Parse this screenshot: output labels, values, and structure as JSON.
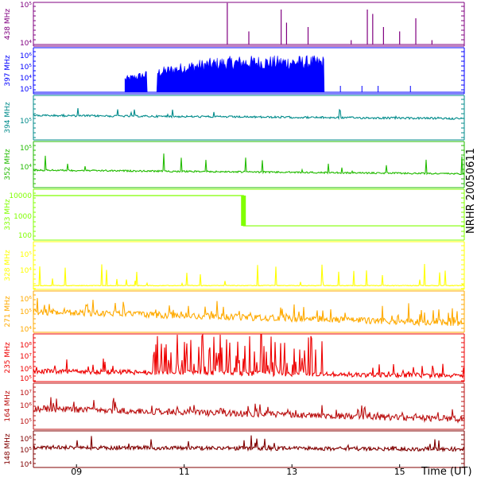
{
  "figure": {
    "side_label": "NRHR 20050611",
    "x_axis_label": "Time (UT)",
    "x_ticks": [
      "09",
      "11",
      "13",
      "15"
    ],
    "x_range_hours": [
      8.2,
      16.2
    ]
  },
  "chart_data": [
    {
      "type": "line",
      "channel": "438 MHz",
      "color": "#800080",
      "y_scale": "log",
      "y_ticks": [
        "10⁵",
        "10⁴"
      ],
      "baseline": "flat near 10^4",
      "spikes": [
        {
          "x": 11.8,
          "y": "10⁵"
        },
        {
          "x": 12.2,
          "y": "10^4.3"
        },
        {
          "x": 12.8,
          "y": "10^4.8"
        },
        {
          "x": 12.9,
          "y": "10^4.5"
        },
        {
          "x": 13.3,
          "y": "10^4.4"
        },
        {
          "x": 14.1,
          "y": "10^4.1"
        },
        {
          "x": 14.4,
          "y": "10^4.8"
        },
        {
          "x": 14.5,
          "y": "10^4.7"
        },
        {
          "x": 14.7,
          "y": "10^4.4"
        },
        {
          "x": 15.0,
          "y": "10^4.3"
        },
        {
          "x": 15.3,
          "y": "10^4.6"
        },
        {
          "x": 15.6,
          "y": "10^4.1"
        }
      ]
    },
    {
      "type": "area",
      "channel": "397 MHz",
      "color": "#0000ff",
      "y_scale": "log",
      "y_ticks": [
        "10⁶",
        "10⁵",
        "10⁴",
        "10³"
      ],
      "activity_hours": [
        9.9,
        13.6
      ],
      "gap_hours": [
        10.3,
        10.5
      ]
    },
    {
      "type": "line",
      "channel": "394 MHz",
      "color": "#008b8b",
      "y_scale": "log",
      "y_ticks": [
        "10⁵"
      ],
      "baseline": "near 10^5, slowly declining"
    },
    {
      "type": "line",
      "channel": "352 MHz",
      "color": "#22bb00",
      "y_scale": "log",
      "y_ticks": [
        "10⁵",
        "10⁴"
      ],
      "baseline": "near 10^4, declining to 10^3.8 by 10.5 UT"
    },
    {
      "type": "line",
      "channel": "333 MHz",
      "color": "#80ff00",
      "y_scale": "log",
      "y_ticks": [
        "10000",
        "1000",
        "100"
      ],
      "steps": [
        {
          "from": 8.2,
          "to": 12.1,
          "value": 8000
        },
        {
          "from": 12.1,
          "to": 16.2,
          "value": 300
        }
      ]
    },
    {
      "type": "line",
      "channel": "328 MHz",
      "color": "#ffff00",
      "y_scale": "log",
      "y_ticks": [
        "10⁵",
        "10⁴"
      ],
      "baseline": "flat near 10^4 with sparse spikes"
    },
    {
      "type": "line",
      "channel": "271 MHz",
      "color": "#ffaa00",
      "y_scale": "log",
      "y_ticks": [
        "10⁶",
        "10⁵",
        "10⁴"
      ],
      "baseline": "near 10^5, declining to ~10^4.5"
    },
    {
      "type": "line",
      "channel": "235 MHz",
      "color": "#ee0000",
      "y_scale": "log",
      "y_ticks": [
        "10⁸",
        "10⁷",
        "10⁶",
        "10⁵"
      ],
      "burst_hours": [
        10.4,
        13.6
      ]
    },
    {
      "type": "line",
      "channel": "164 MHz",
      "color": "#bb1111",
      "y_scale": "log",
      "y_ticks": [
        "10⁷",
        "10⁶",
        "10⁵"
      ],
      "baseline": "near 10^6, declining"
    },
    {
      "type": "line",
      "channel": "148 MHz",
      "color": "#800000",
      "y_scale": "log",
      "y_ticks": [
        "10⁶",
        "10⁵",
        "10⁴"
      ],
      "baseline": "near 10^5"
    }
  ]
}
